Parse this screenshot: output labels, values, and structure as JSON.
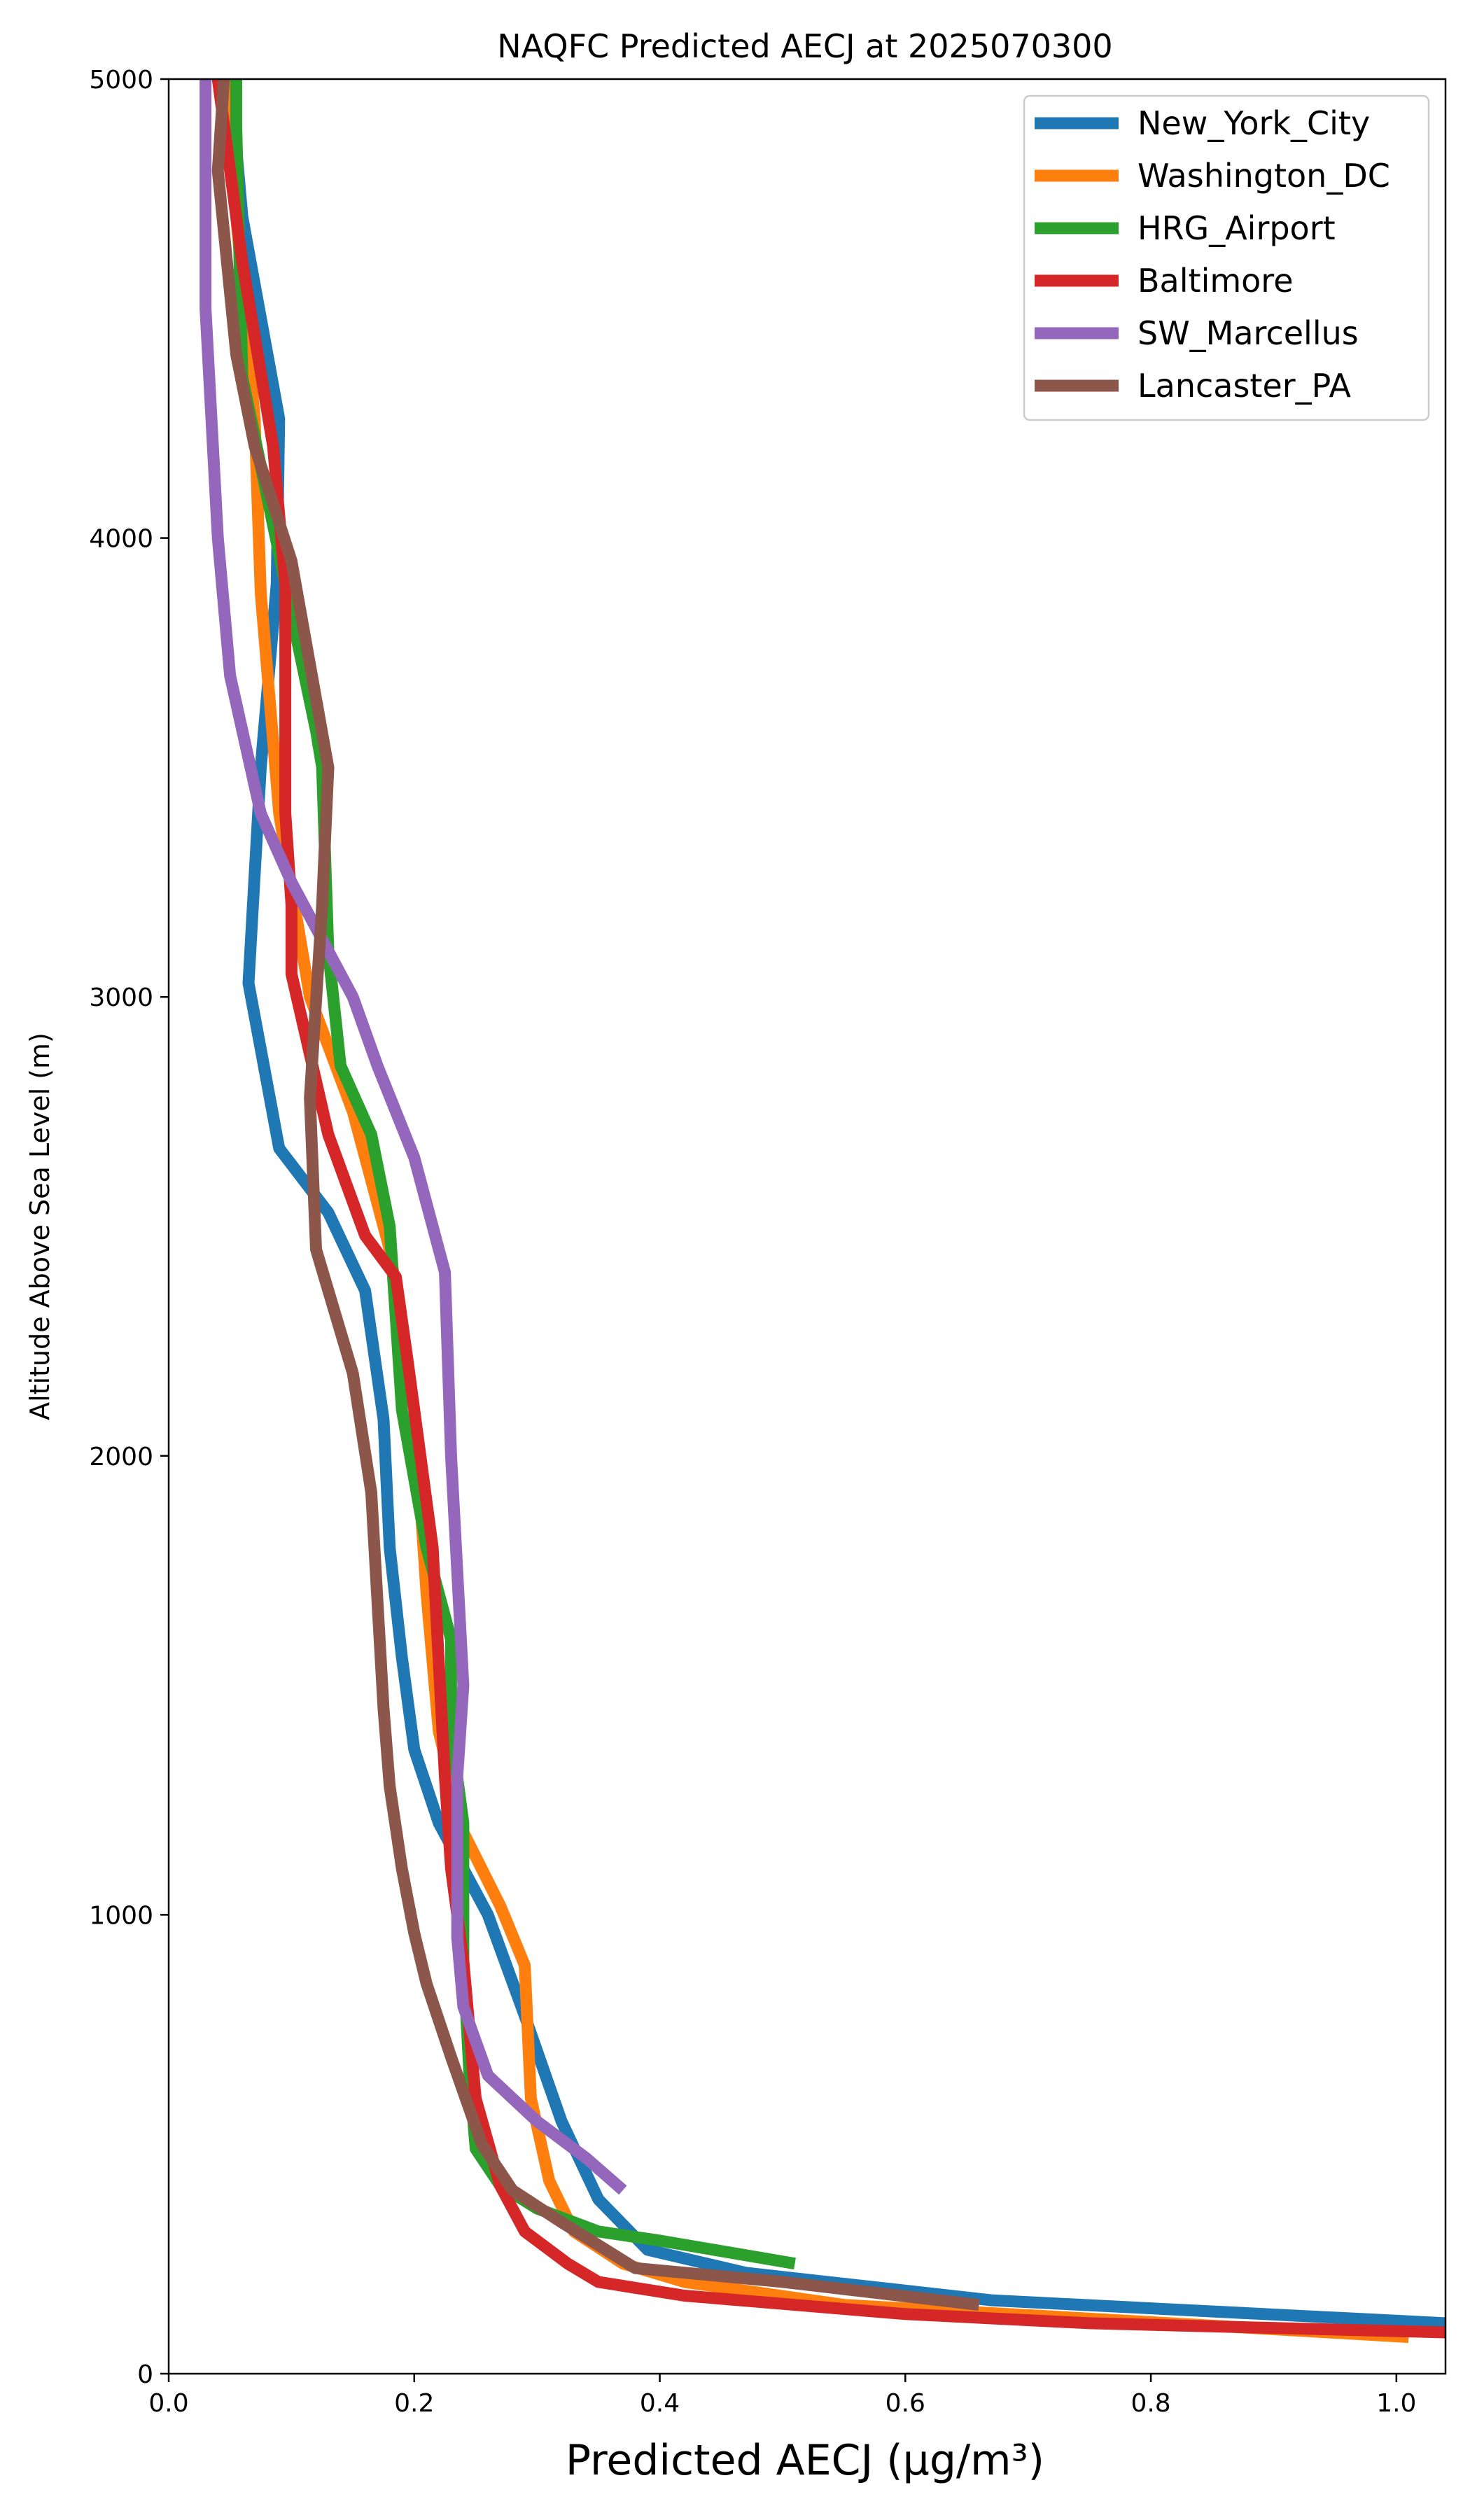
{
  "chart_data": {
    "type": "line",
    "title": "NAQFC Predicted AECJ at 2025070300",
    "xlabel": "Predicted AECJ (μg/m³)",
    "ylabel": "Altitude Above Sea Level (m)",
    "xlim": [
      0.0,
      1.04
    ],
    "ylim": [
      0,
      5000
    ],
    "xticks": [
      "0.0",
      "0.2",
      "0.4",
      "0.6",
      "0.8",
      "1.0"
    ],
    "yticks": [
      "0",
      "1000",
      "2000",
      "3000",
      "4000",
      "5000"
    ],
    "grid": false,
    "legend_position": "upper right",
    "series": [
      {
        "name": "New_York_City",
        "color": "#1f77b4",
        "points": [
          [
            1.04,
            110
          ],
          [
            0.67,
            160
          ],
          [
            0.47,
            220
          ],
          [
            0.39,
            270
          ],
          [
            0.35,
            380
          ],
          [
            0.32,
            550
          ],
          [
            0.29,
            780
          ],
          [
            0.26,
            1000
          ],
          [
            0.22,
            1200
          ],
          [
            0.2,
            1360
          ],
          [
            0.19,
            1560
          ],
          [
            0.18,
            1800
          ],
          [
            0.175,
            2080
          ],
          [
            0.16,
            2360
          ],
          [
            0.13,
            2530
          ],
          [
            0.09,
            2670
          ],
          [
            0.065,
            3030
          ],
          [
            0.075,
            3500
          ],
          [
            0.088,
            3900
          ],
          [
            0.09,
            4260
          ],
          [
            0.06,
            4700
          ],
          [
            0.05,
            5000
          ]
        ]
      },
      {
        "name": "Washington_DC",
        "color": "#ff7f0e",
        "points": [
          [
            1.01,
            80
          ],
          [
            0.75,
            120
          ],
          [
            0.55,
            150
          ],
          [
            0.42,
            200
          ],
          [
            0.37,
            240
          ],
          [
            0.33,
            310
          ],
          [
            0.31,
            420
          ],
          [
            0.295,
            600
          ],
          [
            0.29,
            890
          ],
          [
            0.27,
            1020
          ],
          [
            0.24,
            1180
          ],
          [
            0.22,
            1400
          ],
          [
            0.21,
            1700
          ],
          [
            0.2,
            2100
          ],
          [
            0.18,
            2450
          ],
          [
            0.15,
            2750
          ],
          [
            0.115,
            3000
          ],
          [
            0.09,
            3400
          ],
          [
            0.075,
            3880
          ],
          [
            0.07,
            4260
          ],
          [
            0.055,
            4700
          ],
          [
            0.05,
            5000
          ]
        ]
      },
      {
        "name": "HRG_Airport",
        "color": "#2ca02c",
        "points": [
          [
            0.51,
            240
          ],
          [
            0.4,
            290
          ],
          [
            0.35,
            310
          ],
          [
            0.3,
            360
          ],
          [
            0.27,
            410
          ],
          [
            0.25,
            490
          ],
          [
            0.245,
            650
          ],
          [
            0.24,
            900
          ],
          [
            0.24,
            1200
          ],
          [
            0.23,
            1400
          ],
          [
            0.23,
            1600
          ],
          [
            0.21,
            1800
          ],
          [
            0.19,
            2100
          ],
          [
            0.18,
            2500
          ],
          [
            0.165,
            2700
          ],
          [
            0.14,
            2850
          ],
          [
            0.13,
            3100
          ],
          [
            0.125,
            3500
          ],
          [
            0.12,
            3580
          ],
          [
            0.095,
            3900
          ],
          [
            0.06,
            4350
          ],
          [
            0.055,
            4900
          ],
          [
            0.055,
            5000
          ]
        ]
      },
      {
        "name": "Baltimore",
        "color": "#d62728",
        "points": [
          [
            1.04,
            90
          ],
          [
            0.75,
            110
          ],
          [
            0.6,
            130
          ],
          [
            0.42,
            170
          ],
          [
            0.35,
            200
          ],
          [
            0.325,
            240
          ],
          [
            0.29,
            310
          ],
          [
            0.27,
            410
          ],
          [
            0.25,
            600
          ],
          [
            0.24,
            900
          ],
          [
            0.23,
            1100
          ],
          [
            0.225,
            1300
          ],
          [
            0.215,
            1800
          ],
          [
            0.195,
            2200
          ],
          [
            0.185,
            2390
          ],
          [
            0.16,
            2480
          ],
          [
            0.13,
            2700
          ],
          [
            0.1,
            3050
          ],
          [
            0.1,
            3200
          ],
          [
            0.095,
            3400
          ],
          [
            0.095,
            3900
          ],
          [
            0.085,
            4200
          ],
          [
            0.06,
            4600
          ],
          [
            0.04,
            5000
          ]
        ]
      },
      {
        "name": "SW_Marcellus",
        "color": "#9467bd",
        "points": [
          [
            0.37,
            400
          ],
          [
            0.34,
            470
          ],
          [
            0.3,
            550
          ],
          [
            0.26,
            650
          ],
          [
            0.24,
            800
          ],
          [
            0.235,
            950
          ],
          [
            0.235,
            1300
          ],
          [
            0.24,
            1500
          ],
          [
            0.23,
            2000
          ],
          [
            0.225,
            2400
          ],
          [
            0.2,
            2650
          ],
          [
            0.17,
            2850
          ],
          [
            0.15,
            3000
          ],
          [
            0.1,
            3250
          ],
          [
            0.075,
            3400
          ],
          [
            0.05,
            3700
          ],
          [
            0.04,
            4000
          ],
          [
            0.03,
            4500
          ],
          [
            0.03,
            5000
          ]
        ]
      },
      {
        "name": "Lancaster_PA",
        "color": "#8c564b",
        "points": [
          [
            0.66,
            150
          ],
          [
            0.5,
            200
          ],
          [
            0.38,
            230
          ],
          [
            0.35,
            280
          ],
          [
            0.32,
            330
          ],
          [
            0.28,
            400
          ],
          [
            0.255,
            500
          ],
          [
            0.23,
            690
          ],
          [
            0.21,
            850
          ],
          [
            0.2,
            960
          ],
          [
            0.19,
            1100
          ],
          [
            0.18,
            1280
          ],
          [
            0.175,
            1450
          ],
          [
            0.165,
            1920
          ],
          [
            0.15,
            2180
          ],
          [
            0.12,
            2450
          ],
          [
            0.115,
            2780
          ],
          [
            0.125,
            3200
          ],
          [
            0.13,
            3500
          ],
          [
            0.1,
            3950
          ],
          [
            0.07,
            4200
          ],
          [
            0.055,
            4400
          ],
          [
            0.04,
            4800
          ],
          [
            0.045,
            5000
          ]
        ]
      }
    ]
  }
}
